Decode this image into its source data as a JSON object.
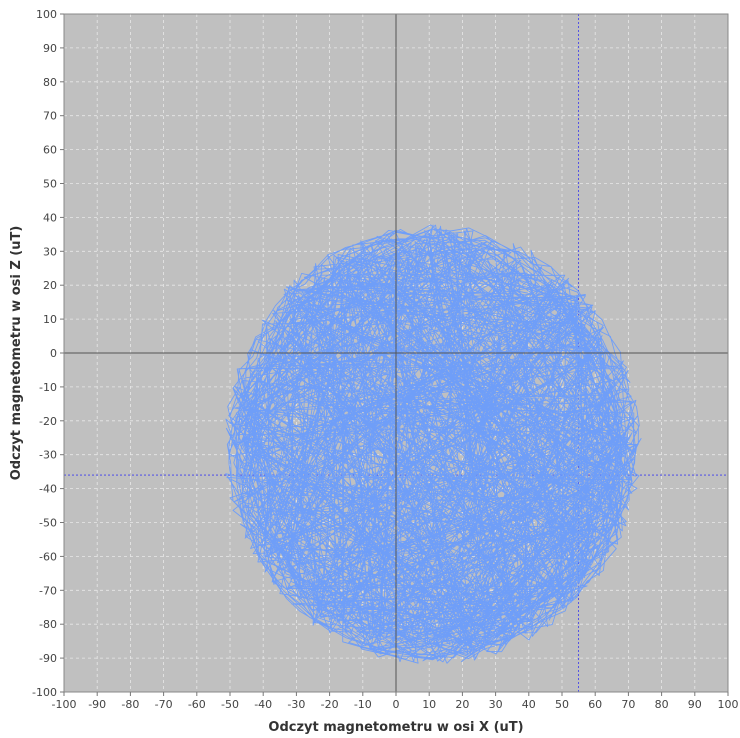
{
  "chart_data": {
    "type": "line",
    "title": "",
    "xlabel": "Odczyt magnetometru w osi X (uT)",
    "ylabel": "Odczyt magnetometru w osi Z (uT)",
    "xlim": [
      -100,
      100
    ],
    "ylim": [
      -100,
      100
    ],
    "xticks": [
      -100,
      -90,
      -80,
      -70,
      -60,
      -50,
      -40,
      -30,
      -20,
      -10,
      0,
      10,
      20,
      30,
      40,
      50,
      60,
      70,
      80,
      90,
      100
    ],
    "yticks": [
      -100,
      -90,
      -80,
      -70,
      -60,
      -50,
      -40,
      -30,
      -20,
      -10,
      0,
      10,
      20,
      30,
      40,
      50,
      60,
      70,
      80,
      90,
      100
    ],
    "grid": true,
    "legend": "none",
    "zero_lines": true,
    "crosshair": {
      "x": 55,
      "y": -36
    },
    "colors": {
      "plot_background": "#c0c0c0",
      "series": "#6f9ef8",
      "gridline": "#e8e8e8",
      "zero_line": "#555555",
      "crosshair": "#3a3aee"
    },
    "series": [
      {
        "circle": {
          "cx": 11,
          "cy": -27,
          "r": 60
        },
        "values": [
          [
            -5,
            32
          ],
          [
            5,
            34
          ],
          [
            15,
            35
          ],
          [
            25,
            33
          ],
          [
            35,
            28
          ],
          [
            45,
            20
          ],
          [
            52,
            10
          ],
          [
            58,
            0
          ],
          [
            63,
            -10
          ],
          [
            67,
            -20
          ],
          [
            68,
            -30
          ],
          [
            67,
            -40
          ],
          [
            65,
            -50
          ],
          [
            60,
            -60
          ],
          [
            53,
            -70
          ],
          [
            44,
            -78
          ],
          [
            34,
            -84
          ],
          [
            22,
            -88
          ],
          [
            10,
            -89
          ],
          [
            -2,
            -88
          ],
          [
            -14,
            -84
          ],
          [
            -25,
            -78
          ],
          [
            -34,
            -70
          ],
          [
            -41,
            -60
          ],
          [
            -45,
            -50
          ],
          [
            -47,
            -40
          ],
          [
            -47,
            -30
          ],
          [
            -45,
            -20
          ],
          [
            -42,
            -8
          ],
          [
            -37,
            2
          ],
          [
            -30,
            12
          ],
          [
            -22,
            20
          ],
          [
            -13,
            27
          ],
          [
            -4,
            31
          ],
          [
            8,
            34
          ],
          [
            20,
            34
          ],
          [
            32,
            30
          ],
          [
            42,
            24
          ],
          [
            50,
            14
          ],
          [
            57,
            3
          ],
          [
            62,
            -8
          ],
          [
            66,
            -18
          ],
          [
            69,
            -30
          ],
          [
            68,
            -42
          ],
          [
            66,
            -52
          ],
          [
            61,
            -62
          ],
          [
            54,
            -71
          ],
          [
            46,
            -78
          ],
          [
            35,
            -84
          ],
          [
            33,
            -84
          ],
          [
            22,
            -88
          ],
          [
            10,
            -90
          ],
          [
            -3,
            -88
          ],
          [
            -15,
            -84
          ],
          [
            -26,
            -78
          ],
          [
            -34,
            -71
          ],
          [
            -41,
            -61
          ],
          [
            -46,
            -50
          ],
          [
            -48,
            -38
          ],
          [
            -48,
            -28
          ],
          [
            -46,
            -17
          ],
          [
            -43,
            -6
          ],
          [
            -38,
            5
          ],
          [
            -31,
            14
          ],
          [
            -22,
            22
          ],
          [
            -12,
            28
          ],
          [
            -2,
            32
          ],
          [
            10,
            35
          ],
          [
            12,
            10
          ],
          [
            30,
            -5
          ],
          [
            -20,
            -20
          ],
          [
            40,
            -12
          ],
          [
            55,
            -40
          ],
          [
            10,
            -60
          ],
          [
            -30,
            -45
          ],
          [
            25,
            15
          ],
          [
            45,
            -10
          ],
          [
            -10,
            5
          ],
          [
            60,
            -25
          ],
          [
            20,
            -75
          ],
          [
            -25,
            -70
          ],
          [
            38,
            -55
          ],
          [
            5,
            -30
          ],
          [
            -35,
            -15
          ],
          [
            50,
            0
          ],
          [
            15,
            -85
          ],
          [
            32,
            -20
          ],
          [
            -15,
            18
          ],
          [
            62,
            -35
          ],
          [
            28,
            -65
          ],
          [
            -40,
            -30
          ],
          [
            48,
            -70
          ],
          [
            0,
            30
          ],
          [
            18,
            -45
          ],
          [
            55,
            15
          ],
          [
            -20,
            -60
          ],
          [
            35,
            -35
          ],
          [
            65,
            -10
          ],
          [
            8,
            -80
          ],
          [
            -45,
            -45
          ],
          [
            42,
            5
          ],
          [
            25,
            -50
          ],
          [
            -5,
            -10
          ],
          [
            58,
            -55
          ],
          [
            30,
            25
          ],
          [
            -28,
            0
          ],
          [
            45,
            -30
          ],
          [
            12,
            -65
          ],
          [
            -38,
            -55
          ],
          [
            52,
            22
          ],
          [
            20,
            -12
          ],
          [
            63,
            -45
          ],
          [
            -10,
            28
          ],
          [
            36,
            -80
          ],
          [
            0,
            -40
          ],
          [
            48,
            -58
          ],
          [
            -32,
            10
          ],
          [
            28,
            -28
          ],
          [
            60,
            -5
          ],
          [
            15,
            30
          ],
          [
            35,
            -84
          ],
          [
            33,
            -83
          ],
          [
            34,
            -85
          ],
          [
            31,
            -84
          ],
          [
            36,
            -83
          ],
          [
            33,
            -86
          ],
          [
            10,
            34
          ]
        ]
      }
    ]
  }
}
